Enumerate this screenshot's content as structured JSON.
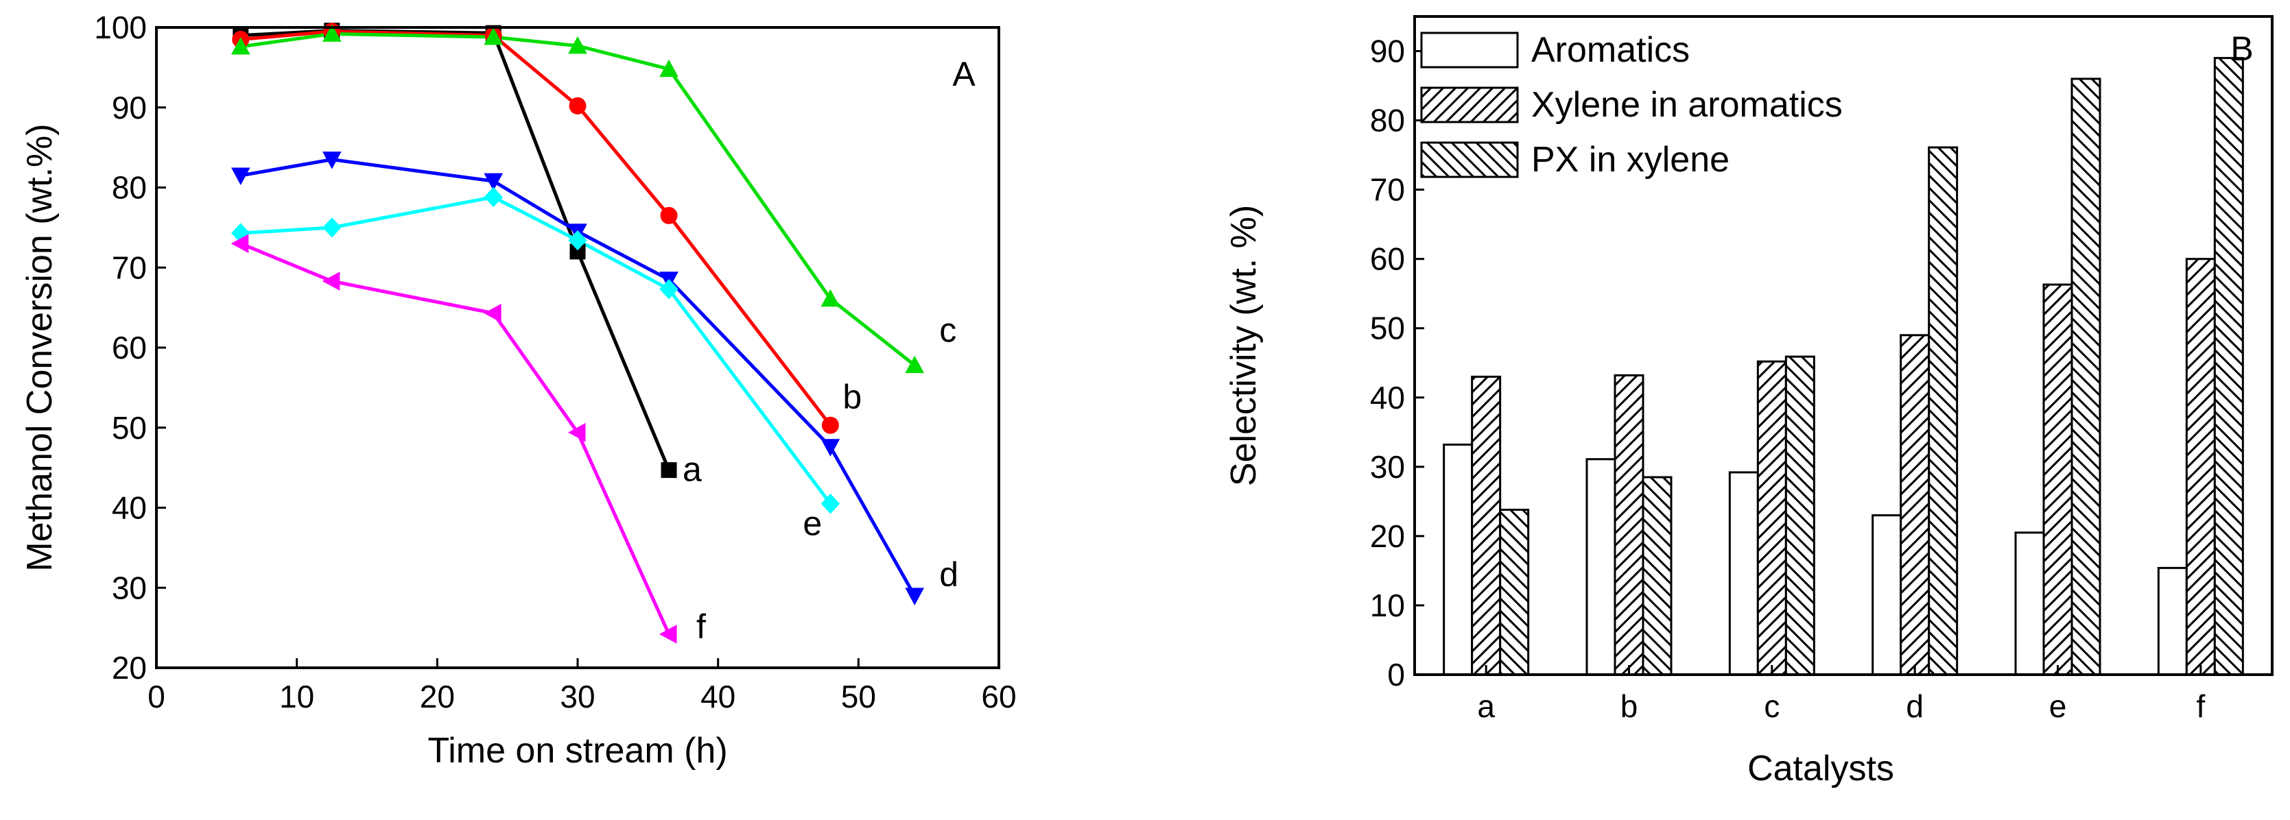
{
  "chart_data": [
    {
      "type": "line",
      "panel_label": "A",
      "xlabel": "Time on stream (h)",
      "ylabel": "Methanol Conversion (wt.%)",
      "xlim": [
        0,
        60
      ],
      "ylim": [
        20,
        100
      ],
      "xticks": [
        0,
        10,
        20,
        30,
        40,
        50,
        60
      ],
      "yticks": [
        20,
        30,
        40,
        50,
        60,
        70,
        80,
        90,
        100
      ],
      "grid": false,
      "series": [
        {
          "name": "a",
          "color": "#000000",
          "marker": "square",
          "x": [
            6,
            12.5,
            24,
            30,
            36.5
          ],
          "y": [
            99.0,
            99.6,
            99.3,
            72.0,
            44.7
          ]
        },
        {
          "name": "b",
          "color": "#ff0000",
          "marker": "circle",
          "x": [
            6,
            12.5,
            24,
            30,
            36.5,
            48
          ],
          "y": [
            98.5,
            99.5,
            99.0,
            90.2,
            76.5,
            50.3
          ]
        },
        {
          "name": "c",
          "color": "#00dd00",
          "marker": "triangle-up",
          "x": [
            6,
            12.5,
            24,
            30,
            36.5,
            48,
            54
          ],
          "y": [
            97.6,
            99.2,
            98.8,
            97.7,
            94.8,
            66.1,
            57.8
          ]
        },
        {
          "name": "d",
          "color": "#0000ff",
          "marker": "triangle-down",
          "x": [
            6,
            12.5,
            24,
            30,
            36.5,
            48,
            54
          ],
          "y": [
            81.5,
            83.5,
            80.8,
            74.5,
            68.5,
            47.6,
            29.0
          ]
        },
        {
          "name": "e",
          "color": "#00ffff",
          "marker": "diamond",
          "x": [
            6,
            12.5,
            24,
            30,
            36.5,
            48
          ],
          "y": [
            74.3,
            75.0,
            78.8,
            73.4,
            67.3,
            40.5
          ]
        },
        {
          "name": "f",
          "color": "#ff00ff",
          "marker": "triangle-left",
          "x": [
            6,
            12.5,
            24,
            30,
            36.5
          ],
          "y": [
            73.0,
            68.3,
            64.3,
            49.4,
            24.2
          ]
        }
      ]
    },
    {
      "type": "bar",
      "panel_label": "B",
      "xlabel": "Catalysts",
      "ylabel": "Selectivity (wt. %)",
      "categories": [
        "a",
        "b",
        "c",
        "d",
        "e",
        "f"
      ],
      "ylim": [
        0,
        95
      ],
      "yticks": [
        0,
        10,
        20,
        30,
        40,
        50,
        60,
        70,
        80,
        90
      ],
      "grid": false,
      "legend_position": "top-left",
      "series": [
        {
          "name": "Aromatics",
          "pattern": "none",
          "values": [
            33.2,
            31.1,
            29.2,
            23.0,
            20.5,
            15.4
          ]
        },
        {
          "name": "Xylene in aromatics",
          "pattern": "hatch-forward",
          "values": [
            43.0,
            43.2,
            45.2,
            49.0,
            56.3,
            60.0
          ]
        },
        {
          "name": "PX in xylene",
          "pattern": "hatch-back",
          "values": [
            23.8,
            28.5,
            45.9,
            76.1,
            86.0,
            89.0
          ]
        }
      ]
    }
  ]
}
